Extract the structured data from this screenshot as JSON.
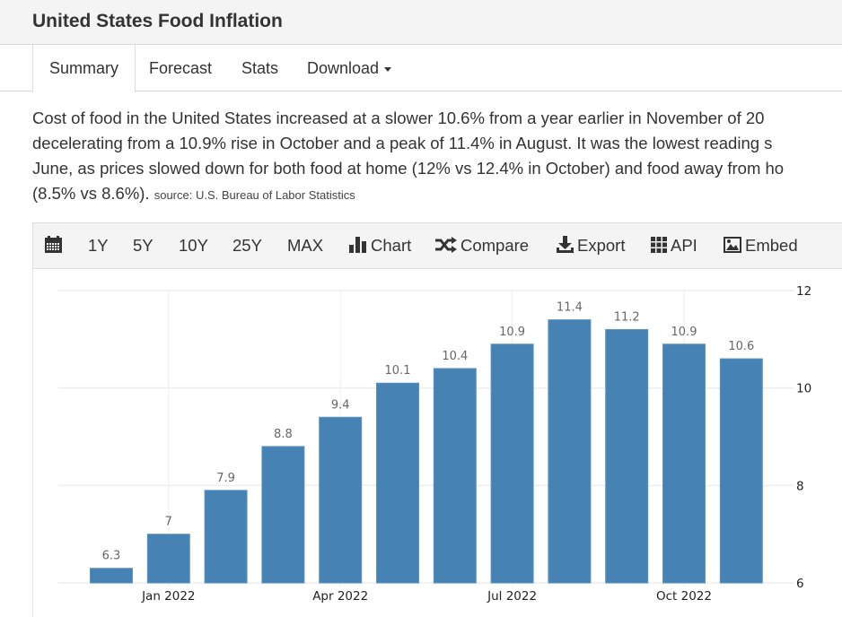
{
  "header": {
    "title": "United States Food Inflation"
  },
  "tabs": [
    {
      "label": "Summary",
      "active": true
    },
    {
      "label": "Forecast",
      "active": false
    },
    {
      "label": "Stats",
      "active": false
    },
    {
      "label": "Download",
      "active": false
    }
  ],
  "summary": {
    "lines": [
      "Cost of food in the United States increased at a slower 10.6% from a year earlier in November of 20",
      "decelerating from a 10.9% rise in October and a peak of 11.4% in August. It was the lowest reading s",
      "June, as prices slowed down for both food at home (12% vs 12.4% in October) and food away from ho",
      "(8.5% vs 8.6%)."
    ],
    "source": "source: U.S. Bureau of Labor Statistics"
  },
  "toolbar": {
    "calendar_icon": "calendar-icon",
    "ranges": [
      "1Y",
      "5Y",
      "10Y",
      "25Y",
      "MAX"
    ],
    "chart_label": "Chart",
    "compare_label": "Compare",
    "export_label": "Export",
    "api_label": "API",
    "embed_label": "Embed"
  },
  "colors": {
    "bar": "#4682b4",
    "grid": "#eeeeee"
  },
  "chart_data": {
    "type": "bar",
    "title": "United States Food Inflation",
    "categories": [
      "Dec 2021",
      "Jan 2022",
      "Feb 2022",
      "Mar 2022",
      "Apr 2022",
      "May 2022",
      "Jun 2022",
      "Jul 2022",
      "Aug 2022",
      "Sep 2022",
      "Oct 2022",
      "Nov 2022"
    ],
    "values": [
      6.3,
      7,
      7.9,
      8.8,
      9.4,
      10.1,
      10.4,
      10.9,
      11.4,
      11.2,
      10.9,
      10.6
    ],
    "value_labels": [
      "6.3",
      "7",
      "7.9",
      "8.8",
      "9.4",
      "10.1",
      "10.4",
      "10.9",
      "11.4",
      "11.2",
      "10.9",
      "10.6"
    ],
    "x_tick_labels": [
      {
        "category": "Jan 2022",
        "label": "Jan 2022"
      },
      {
        "category": "Apr 2022",
        "label": "Apr 2022"
      },
      {
        "category": "Jul 2022",
        "label": "Jul 2022"
      },
      {
        "category": "Oct 2022",
        "label": "Oct 2022"
      }
    ],
    "y_ticks": [
      6,
      8,
      10,
      12
    ],
    "ylim": [
      6,
      12
    ],
    "y_axis_side": "right",
    "grid": true,
    "xlabel": "",
    "ylabel": ""
  }
}
